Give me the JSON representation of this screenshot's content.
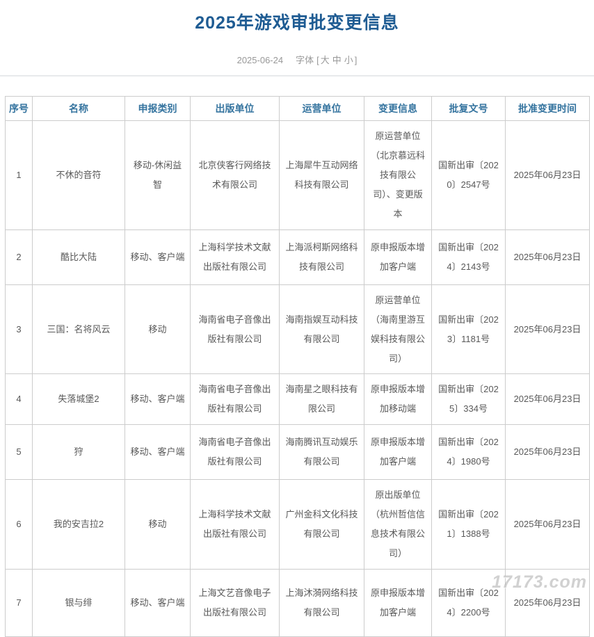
{
  "page": {
    "title": "2025年游戏审批变更信息",
    "date": "2025-06-24",
    "font_label": "字体",
    "bracket_open": "[",
    "bracket_close": "]",
    "font_sizes": {
      "large": "大",
      "medium": "中",
      "small": "小"
    },
    "watermark": "17173.com"
  },
  "colors": {
    "title_blue": "#1f5c93",
    "header_blue": "#35749f",
    "body_text": "#595959",
    "meta_gray": "#989898",
    "border_gray": "#cccccc"
  },
  "table": {
    "headers": [
      "序号",
      "名称",
      "申报类别",
      "出版单位",
      "运营单位",
      "变更信息",
      "批复文号",
      "批准变更时间"
    ],
    "rows": [
      [
        "1",
        "不休的音符",
        "移动-休闲益智",
        "北京侠客行网络技术有限公司",
        "上海犀牛互动网络科技有限公司",
        "原运营单位（北京慕远科技有限公司）、变更版本",
        "国新出审〔2020〕2547号",
        "2025年06月23日"
      ],
      [
        "2",
        "酷比大陆",
        "移动、客户端",
        "上海科学技术文献出版社有限公司",
        "上海派柯斯网络科技有限公司",
        "原申报版本增加客户端",
        "国新出审〔2024〕2143号",
        "2025年06月23日"
      ],
      [
        "3",
        "三国：名将风云",
        "移动",
        "海南省电子音像出版社有限公司",
        "海南指娱互动科技有限公司",
        "原运营单位（海南里游互娱科技有限公司）",
        "国新出审〔2023〕1181号",
        "2025年06月23日"
      ],
      [
        "4",
        "失落城堡2",
        "移动、客户端",
        "海南省电子音像出版社有限公司",
        "海南星之眼科技有限公司",
        "原申报版本增加移动端",
        "国新出审〔2025〕334号",
        "2025年06月23日"
      ],
      [
        "5",
        "狩",
        "移动、客户端",
        "海南省电子音像出版社有限公司",
        "海南腾讯互动娱乐有限公司",
        "原申报版本增加客户端",
        "国新出审〔2024〕1980号",
        "2025年06月23日"
      ],
      [
        "6",
        "我的安吉拉2",
        "移动",
        "上海科学技术文献出版社有限公司",
        "广州金科文化科技有限公司",
        "原出版单位（杭州哲信信息技术有限公司）",
        "国新出审〔2021〕1388号",
        "2025年06月23日"
      ],
      [
        "7",
        "银与绯",
        "移动、客户端",
        "上海文艺音像电子出版社有限公司",
        "上海沐漪网络科技有限公司",
        "原申报版本增加客户端",
        "国新出审〔2024〕2200号",
        "2025年06月23日"
      ]
    ]
  }
}
